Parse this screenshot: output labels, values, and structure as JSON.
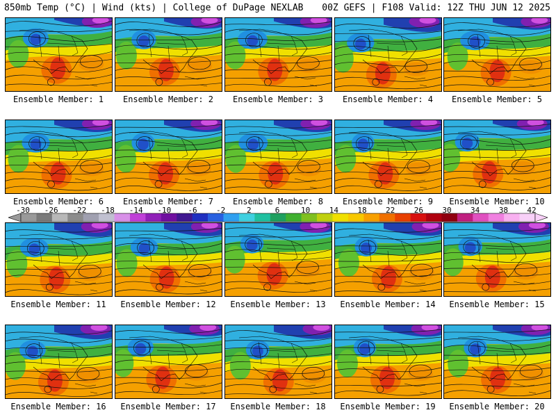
{
  "header": {
    "left": "850mb Temp (°C) | Wind (kts) | College of DuPage NEXLAB",
    "right": "00Z GEFS | F108 Valid: 12Z THU JUN 12 2025"
  },
  "member_label_prefix": "Ensemble Member: ",
  "members": [
    "1",
    "2",
    "3",
    "4",
    "5",
    "6",
    "7",
    "8",
    "9",
    "10",
    "11",
    "12",
    "13",
    "14",
    "15",
    "16",
    "17",
    "18",
    "19",
    "20"
  ],
  "colorbar": {
    "labels": [
      "-30",
      "-26",
      "-22",
      "-18",
      "-14",
      "-10",
      "-6",
      "-2",
      "2",
      "6",
      "10",
      "14",
      "18",
      "22",
      "26",
      "30",
      "34",
      "38",
      "42"
    ],
    "colors": [
      "#9a9a9a",
      "#7a7a7a",
      "#b8b8b8",
      "#8c8c8c",
      "#a0a0b0",
      "#c0c0d0",
      "#d890e8",
      "#c040d8",
      "#9020b8",
      "#7010a0",
      "#401890",
      "#2030c0",
      "#2860e0",
      "#30a0f0",
      "#40d0e0",
      "#20c0a0",
      "#20a060",
      "#40b030",
      "#80c020",
      "#c0d010",
      "#f0e000",
      "#f8c800",
      "#f8a000",
      "#f07000",
      "#e84000",
      "#d81010",
      "#b00010",
      "#900010",
      "#c02080",
      "#e050c0",
      "#f080e0",
      "#f8b0f0",
      "#f8d0f8"
    ]
  }
}
